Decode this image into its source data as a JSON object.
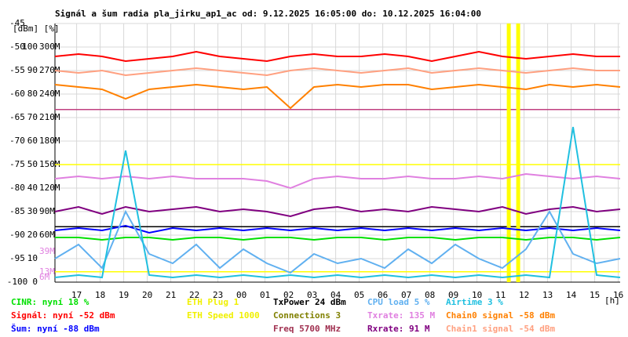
{
  "chart_data": {
    "type": "line",
    "title": "Signál a šum radia pla_jirku_ap1_ac od: 9.12.2025 16:05:00 do: 10.12.2025 16:04:00",
    "y_unit_label": "[dBm] [%]",
    "x_unit_label": "[h]",
    "xlim": [
      0,
      24
    ],
    "xticks": [
      {
        "value": 0.92,
        "label": "17"
      },
      {
        "value": 1.92,
        "label": "18"
      },
      {
        "value": 2.92,
        "label": "19"
      },
      {
        "value": 3.92,
        "label": "20"
      },
      {
        "value": 4.92,
        "label": "21"
      },
      {
        "value": 5.92,
        "label": "22"
      },
      {
        "value": 6.92,
        "label": "23"
      },
      {
        "value": 7.92,
        "label": "00"
      },
      {
        "value": 8.92,
        "label": "01"
      },
      {
        "value": 9.92,
        "label": "02"
      },
      {
        "value": 10.92,
        "label": "03"
      },
      {
        "value": 11.92,
        "label": "04"
      },
      {
        "value": 12.92,
        "label": "05"
      },
      {
        "value": 13.92,
        "label": "06"
      },
      {
        "value": 14.92,
        "label": "07"
      },
      {
        "value": 15.92,
        "label": "08"
      },
      {
        "value": 16.92,
        "label": "09"
      },
      {
        "value": 17.92,
        "label": "10"
      },
      {
        "value": 18.92,
        "label": "11"
      },
      {
        "value": 19.92,
        "label": "12"
      },
      {
        "value": 20.92,
        "label": "13"
      },
      {
        "value": 21.92,
        "label": "14"
      },
      {
        "value": 22.92,
        "label": "15"
      },
      {
        "value": 23.92,
        "label": "16"
      }
    ],
    "ylim": [
      -100,
      -45
    ],
    "yticks": [
      -100,
      -95,
      -90,
      -85,
      -80,
      -75,
      -70,
      -65,
      -60,
      -55,
      -50,
      -45
    ],
    "pct_ticks": [
      0,
      10,
      20,
      30,
      40,
      50,
      60,
      70,
      80,
      90,
      100
    ],
    "rate_ticks": [
      {
        "value": 60,
        "label": "60M"
      },
      {
        "value": 90,
        "label": "90M"
      },
      {
        "value": 120,
        "label": "120M"
      },
      {
        "value": 150,
        "label": "150M"
      },
      {
        "value": 180,
        "label": "180M"
      },
      {
        "value": 210,
        "label": "210M"
      },
      {
        "value": 240,
        "label": "240M"
      },
      {
        "value": 270,
        "label": "270M"
      },
      {
        "value": 300,
        "label": "300M"
      }
    ],
    "rate_markers": [
      {
        "value": 39,
        "label": "39M"
      },
      {
        "value": 13,
        "label": "13M"
      },
      {
        "value": 6,
        "label": "6M"
      }
    ],
    "grid": true,
    "x": [
      0,
      1,
      2,
      3,
      4,
      5,
      6,
      7,
      8,
      9,
      10,
      11,
      12,
      13,
      14,
      15,
      16,
      17,
      18,
      19,
      20,
      21,
      22,
      23,
      24
    ],
    "series": [
      {
        "name": "Signál",
        "color": "#ff0000",
        "values": [
          -52,
          -51.5,
          -52,
          -53,
          -52.5,
          -52,
          -51,
          -52,
          -52.5,
          -53,
          -52,
          -51.5,
          -52,
          -52,
          -51.5,
          -52,
          -53,
          -52,
          -51,
          -52,
          -52.5,
          -52,
          -51.5,
          -52,
          -52
        ]
      },
      {
        "name": "Chain1",
        "color": "#ffa080",
        "values": [
          -55,
          -55.5,
          -55,
          -56,
          -55.5,
          -55,
          -54.5,
          -55,
          -55.5,
          -56,
          -55,
          -54.5,
          -55,
          -55.5,
          -55,
          -54.5,
          -55.5,
          -55,
          -54.5,
          -55,
          -55.5,
          -55,
          -54.5,
          -55,
          -55
        ]
      },
      {
        "name": "Chain0",
        "color": "#ff8000",
        "values": [
          -58,
          -58.5,
          -59,
          -61,
          -59,
          -58.5,
          -58,
          -58.5,
          -59,
          -58.5,
          -63,
          -58.5,
          -58,
          -58.5,
          -58,
          -58,
          -59,
          -58.5,
          -58,
          -58.5,
          -59,
          -58,
          -58.5,
          -58,
          -58.5
        ]
      },
      {
        "name": "Txrate",
        "color": "#e080e0",
        "values": [
          -78,
          -77.5,
          -78,
          -77.5,
          -78,
          -77.5,
          -78,
          -78,
          -78,
          -78.5,
          -80,
          -78,
          -77.5,
          -78,
          -78,
          -77.5,
          -78,
          -78,
          -77.5,
          -78,
          -77,
          -77.5,
          -78,
          -77.5,
          -78
        ]
      },
      {
        "name": "Rxrate",
        "color": "#800080",
        "values": [
          -85,
          -84,
          -85.5,
          -84,
          -85,
          -84.5,
          -84,
          -85,
          -84.5,
          -85,
          -86,
          -84.5,
          -84,
          -85,
          -84.5,
          -85,
          -84,
          -84.5,
          -85,
          -84,
          -85.5,
          -84.5,
          -84,
          -85,
          -84.5
        ]
      },
      {
        "name": "Šum",
        "color": "#0000ff",
        "values": [
          -89,
          -88.5,
          -89,
          -88,
          -89.5,
          -88.5,
          -89,
          -88.5,
          -89,
          -88.5,
          -89,
          -88.5,
          -89,
          -88.5,
          -89,
          -88.5,
          -89,
          -88.5,
          -89,
          -88.5,
          -89,
          -88.5,
          -89,
          -88.5,
          -89
        ]
      },
      {
        "name": "CINR",
        "color": "#00e000",
        "values": [
          -90.5,
          -90.5,
          -91,
          -90.5,
          -90.5,
          -91,
          -90.5,
          -90.5,
          -91,
          -90.5,
          -90.5,
          -91,
          -90.5,
          -90.5,
          -91,
          -90.5,
          -90.5,
          -91,
          -90.5,
          -90.5,
          -91,
          -90.5,
          -90.5,
          -91,
          -90.5
        ]
      },
      {
        "name": "CPU load",
        "color": "#60b0f0",
        "values": [
          -95,
          -92,
          -97,
          -85,
          -94,
          -96,
          -92,
          -97,
          -93,
          -96,
          -98,
          -94,
          -96,
          -95,
          -97,
          -93,
          -96,
          -92,
          -95,
          -97,
          -93,
          -85,
          -94,
          -96,
          -95
        ]
      },
      {
        "name": "Airtime",
        "color": "#20c0e0",
        "values": [
          -99,
          -98.5,
          -99,
          -72,
          -98.5,
          -99,
          -98.5,
          -99,
          -98.5,
          -99,
          -98.5,
          -99,
          -98.5,
          -99,
          -98.5,
          -99,
          -98.5,
          -99,
          -98.5,
          -99,
          -98.5,
          -99,
          -67,
          -98.5,
          -99
        ]
      }
    ],
    "reference_lines": [
      {
        "value": -63.3,
        "color": "#c04080"
      },
      {
        "value": -75,
        "color": "#ffff00"
      },
      {
        "value": -88.2,
        "color": "#000000"
      },
      {
        "value": -97.8,
        "color": "#ffff00"
      }
    ],
    "events": [
      {
        "value": 19.27,
        "color": "#ffff00"
      },
      {
        "value": 19.67,
        "color": "#ffff00"
      }
    ],
    "legend": [
      [
        {
          "text": "CINR: nyní 18 %",
          "color": "#00e000"
        },
        {
          "text": "Signál: nyní -52 dBm",
          "color": "#ff0000"
        },
        {
          "text": "Šum: nyní -88 dBm",
          "color": "#0000ff"
        }
      ],
      [
        {
          "text": "ETH Plug 1",
          "color": "#f0f000"
        },
        {
          "text": "ETH Speed 1000",
          "color": "#f0f000"
        }
      ],
      [
        {
          "text": "TxPower 24 dBm",
          "color": "#000000"
        },
        {
          "text": "Connections 3",
          "color": "#808000"
        },
        {
          "text": "Freq 5700 MHz",
          "color": "#a03050"
        }
      ],
      [
        {
          "text": "CPU load 5 %",
          "color": "#60b0f0"
        },
        {
          "text": "Txrate: 135 M",
          "color": "#e080e0"
        },
        {
          "text": "Rxrate: 91 M",
          "color": "#800080"
        }
      ],
      [
        {
          "text": "Airtime 3 %",
          "color": "#20c0e0"
        },
        {
          "text": "Chain0 signal -58 dBm",
          "color": "#ff8000"
        },
        {
          "text": "Chain1 signal -54 dBm",
          "color": "#ffa080"
        }
      ]
    ]
  }
}
